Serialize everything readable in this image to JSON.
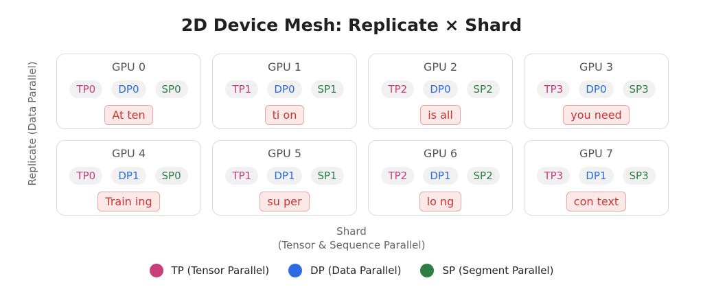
{
  "title": "2D Device Mesh: Replicate × Shard",
  "y_axis_label": "Replicate (Data Parallel)",
  "x_axis_label_line1": "Shard",
  "x_axis_label_line2": "(Tensor & Sequence Parallel)",
  "colors": {
    "tp": "#c83d7c",
    "dp": "#2d6ae3",
    "sp": "#2e7d45",
    "token_text": "#cc3333",
    "token_bg": "#fde8e8"
  },
  "gpus": [
    {
      "name": "GPU 0",
      "tp": "TP0",
      "dp": "DP0",
      "sp": "SP0",
      "token": "At ten"
    },
    {
      "name": "GPU 1",
      "tp": "TP1",
      "dp": "DP0",
      "sp": "SP1",
      "token": "ti on"
    },
    {
      "name": "GPU 2",
      "tp": "TP2",
      "dp": "DP0",
      "sp": "SP2",
      "token": "is all"
    },
    {
      "name": "GPU 3",
      "tp": "TP3",
      "dp": "DP0",
      "sp": "SP3",
      "token": "you need"
    },
    {
      "name": "GPU 4",
      "tp": "TP0",
      "dp": "DP1",
      "sp": "SP0",
      "token": "Train ing"
    },
    {
      "name": "GPU 5",
      "tp": "TP1",
      "dp": "DP1",
      "sp": "SP1",
      "token": "su per"
    },
    {
      "name": "GPU 6",
      "tp": "TP2",
      "dp": "DP1",
      "sp": "SP2",
      "token": "lo ng"
    },
    {
      "name": "GPU 7",
      "tp": "TP3",
      "dp": "DP1",
      "sp": "SP3",
      "token": "con text"
    }
  ],
  "legend": [
    {
      "key": "tp",
      "label": "TP (Tensor Parallel)"
    },
    {
      "key": "dp",
      "label": "DP (Data Parallel)"
    },
    {
      "key": "sp",
      "label": "SP (Segment Parallel)"
    }
  ]
}
